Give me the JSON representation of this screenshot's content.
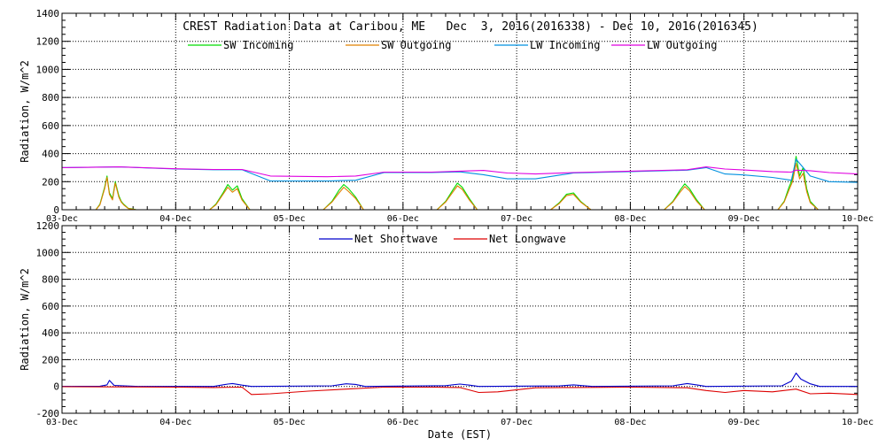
{
  "chart_data": [
    {
      "type": "line",
      "title": "CREST Radiation Data at Caribou, ME   Dec  3, 2016(2016338) - Dec 10, 2016(2016345)",
      "ylabel": "Radiation, W/m^2",
      "xlabel": "",
      "ylim": [
        0,
        1400
      ],
      "yticks": [
        0,
        200,
        400,
        600,
        800,
        1000,
        1200,
        1400
      ],
      "xticks": [
        "03-Dec",
        "04-Dec",
        "05-Dec",
        "06-Dec",
        "07-Dec",
        "08-Dec",
        "09-Dec",
        "10-Dec"
      ],
      "xlim": [
        "2016-12-03",
        "2016-12-10"
      ],
      "grid": true,
      "legend": "top",
      "series": [
        {
          "name": "SW Incoming",
          "color": "#00dd00",
          "x": [
            "12/3 07:10",
            "12/3 08:00",
            "12/3 09:00",
            "12/3 09:30",
            "12/3 10:00",
            "12/3 10:40",
            "12/3 11:15",
            "12/3 12:00",
            "12/3 12:30",
            "12/3 13:00",
            "12/3 14:00",
            "12/3 15:00",
            "12/3 15:40",
            "12/4 07:10",
            "12/4 08:30",
            "12/4 10:00",
            "12/4 11:00",
            "12/4 12:00",
            "12/4 13:00",
            "12/4 14:00",
            "12/4 15:40",
            "12/5 07:10",
            "12/5 09:00",
            "12/5 10:30",
            "12/5 11:30",
            "12/5 12:30",
            "12/5 14:00",
            "12/5 15:40",
            "12/6 07:10",
            "12/6 09:00",
            "12/6 10:30",
            "12/6 11:30",
            "12/6 12:30",
            "12/6 14:00",
            "12/6 15:40",
            "12/7 07:10",
            "12/7 09:00",
            "12/7 10:30",
            "12/7 12:00",
            "12/7 13:30",
            "12/7 15:40",
            "12/8 07:10",
            "12/8 09:00",
            "12/8 10:30",
            "12/8 11:30",
            "12/8 12:30",
            "12/8 14:00",
            "12/8 15:40",
            "12/9 07:10",
            "12/9 08:30",
            "12/9 09:30",
            "12/9 10:15",
            "12/9 11:00",
            "12/9 11:45",
            "12/9 12:30",
            "12/9 13:15",
            "12/9 14:00",
            "12/9 15:40"
          ],
          "values": [
            0,
            40,
            160,
            240,
            120,
            80,
            200,
            100,
            60,
            40,
            10,
            5,
            0,
            0,
            40,
            120,
            180,
            140,
            170,
            80,
            0,
            0,
            60,
            140,
            180,
            150,
            90,
            0,
            0,
            60,
            140,
            190,
            160,
            80,
            0,
            0,
            50,
            110,
            120,
            60,
            0,
            0,
            60,
            140,
            185,
            150,
            70,
            0,
            0,
            60,
            160,
            220,
            380,
            240,
            300,
            150,
            60,
            0
          ]
        },
        {
          "name": "SW Outgoing",
          "color": "#e08000",
          "x": [
            "12/3 07:10",
            "12/3 08:00",
            "12/3 09:00",
            "12/3 09:30",
            "12/3 10:00",
            "12/3 10:40",
            "12/3 11:15",
            "12/3 12:00",
            "12/3 12:30",
            "12/3 13:00",
            "12/3 14:00",
            "12/3 15:00",
            "12/3 15:40",
            "12/4 07:10",
            "12/4 08:30",
            "12/4 10:00",
            "12/4 11:00",
            "12/4 12:00",
            "12/4 13:00",
            "12/4 14:00",
            "12/4 15:40",
            "12/5 07:10",
            "12/5 09:00",
            "12/5 10:30",
            "12/5 11:30",
            "12/5 12:30",
            "12/5 14:00",
            "12/5 15:40",
            "12/6 07:10",
            "12/6 09:00",
            "12/6 10:30",
            "12/6 11:30",
            "12/6 12:30",
            "12/6 14:00",
            "12/6 15:40",
            "12/7 07:10",
            "12/7 09:00",
            "12/7 10:30",
            "12/7 12:00",
            "12/7 13:30",
            "12/7 15:40",
            "12/8 07:10",
            "12/8 09:00",
            "12/8 10:30",
            "12/8 11:30",
            "12/8 12:30",
            "12/8 14:00",
            "12/8 15:40",
            "12/9 07:10",
            "12/9 08:30",
            "12/9 09:30",
            "12/9 10:15",
            "12/9 11:00",
            "12/9 11:45",
            "12/9 12:30",
            "12/9 13:15",
            "12/9 14:00",
            "12/9 15:40"
          ],
          "values": [
            0,
            35,
            150,
            230,
            110,
            70,
            190,
            90,
            55,
            35,
            8,
            4,
            0,
            0,
            35,
            110,
            160,
            125,
            150,
            70,
            0,
            0,
            55,
            120,
            160,
            130,
            80,
            0,
            0,
            55,
            125,
            170,
            145,
            70,
            0,
            0,
            45,
            100,
            110,
            55,
            0,
            0,
            55,
            125,
            165,
            135,
            60,
            0,
            0,
            55,
            140,
            200,
            330,
            220,
            260,
            130,
            50,
            0
          ]
        },
        {
          "name": "LW Incoming",
          "color": "#0090e0",
          "x": [
            "12/3 00:00",
            "12/3 12:00",
            "12/4 00:00",
            "12/4 08:00",
            "12/4 14:00",
            "12/4 20:00",
            "12/5 08:00",
            "12/5 14:00",
            "12/5 20:00",
            "12/6 06:00",
            "12/6 12:00",
            "12/6 17:00",
            "12/6 22:00",
            "12/7 04:00",
            "12/7 12:00",
            "12/8 00:00",
            "12/8 12:00",
            "12/8 16:00",
            "12/8 20:00",
            "12/9 00:00",
            "12/9 06:00",
            "12/9 10:00",
            "12/9 11:00",
            "12/9 14:00",
            "12/9 18:00",
            "12/10 00:00"
          ],
          "values": [
            300,
            305,
            290,
            285,
            285,
            205,
            205,
            210,
            265,
            265,
            270,
            250,
            220,
            220,
            262,
            272,
            282,
            300,
            255,
            248,
            230,
            210,
            360,
            240,
            200,
            195
          ]
        },
        {
          "name": "LW Outgoing",
          "color": "#e000e0",
          "x": [
            "12/3 00:00",
            "12/3 12:00",
            "12/4 00:00",
            "12/4 08:00",
            "12/4 14:00",
            "12/4 20:00",
            "12/5 08:00",
            "12/5 14:00",
            "12/5 20:00",
            "12/6 06:00",
            "12/6 12:00",
            "12/6 17:00",
            "12/6 22:00",
            "12/7 04:00",
            "12/7 12:00",
            "12/8 00:00",
            "12/8 12:00",
            "12/8 16:00",
            "12/8 20:00",
            "12/9 00:00",
            "12/9 06:00",
            "12/9 10:00",
            "12/9 11:00",
            "12/9 14:00",
            "12/9 18:00",
            "12/10 00:00"
          ],
          "values": [
            300,
            305,
            292,
            287,
            287,
            240,
            235,
            240,
            268,
            268,
            275,
            280,
            262,
            255,
            265,
            275,
            285,
            305,
            290,
            283,
            272,
            268,
            282,
            278,
            265,
            255
          ]
        }
      ]
    },
    {
      "type": "line",
      "title": "",
      "ylabel": "Radiation, W/m^2",
      "xlabel": "Date (EST)",
      "ylim": [
        -200,
        1200
      ],
      "yticks": [
        -200,
        0,
        200,
        400,
        600,
        800,
        1000,
        1200
      ],
      "xticks": [
        "03-Dec",
        "04-Dec",
        "05-Dec",
        "06-Dec",
        "07-Dec",
        "08-Dec",
        "09-Dec",
        "10-Dec"
      ],
      "xlim": [
        "2016-12-03",
        "2016-12-10"
      ],
      "grid": true,
      "legend": "top",
      "series": [
        {
          "name": "Net Shortwave",
          "color": "#0000cc",
          "x": [
            "12/3 00:00",
            "12/3 08:00",
            "12/3 09:30",
            "12/3 10:00",
            "12/3 11:00",
            "12/3 16:00",
            "12/4 08:00",
            "12/4 11:00",
            "12/4 12:00",
            "12/4 14:00",
            "12/4 16:00",
            "12/5 09:00",
            "12/5 12:00",
            "12/5 14:00",
            "12/5 16:00",
            "12/6 09:00",
            "12/6 12:00",
            "12/6 14:00",
            "12/6 16:00",
            "12/7 09:00",
            "12/7 12:00",
            "12/7 16:00",
            "12/8 09:00",
            "12/8 12:00",
            "12/8 14:00",
            "12/8 16:00",
            "12/9 08:00",
            "12/9 10:00",
            "12/9 11:00",
            "12/9 12:00",
            "12/9 14:00",
            "12/9 16:00",
            "12/10 00:00"
          ],
          "values": [
            0,
            2,
            12,
            45,
            8,
            0,
            0,
            18,
            22,
            10,
            0,
            5,
            20,
            15,
            0,
            6,
            18,
            10,
            0,
            4,
            12,
            0,
            5,
            22,
            12,
            0,
            5,
            40,
            100,
            55,
            20,
            0,
            0
          ]
        },
        {
          "name": "Net Longwave",
          "color": "#dd0000",
          "x": [
            "12/3 00:00",
            "12/3 12:00",
            "12/4 00:00",
            "12/4 08:00",
            "12/4 14:00",
            "12/4 16:00",
            "12/4 20:00",
            "12/5 04:00",
            "12/5 12:00",
            "12/5 20:00",
            "12/6 06:00",
            "12/6 12:00",
            "12/6 16:00",
            "12/6 20:00",
            "12/7 04:00",
            "12/7 12:00",
            "12/8 00:00",
            "12/8 12:00",
            "12/8 16:00",
            "12/8 20:00",
            "12/9 00:00",
            "12/9 06:00",
            "12/9 11:00",
            "12/9 14:00",
            "12/9 18:00",
            "12/10 00:00"
          ],
          "values": [
            -2,
            -3,
            -5,
            -8,
            -5,
            -60,
            -55,
            -35,
            -20,
            -5,
            -5,
            -8,
            -45,
            -40,
            -10,
            -8,
            -5,
            -10,
            -30,
            -45,
            -30,
            -40,
            -20,
            -55,
            -50,
            -60
          ]
        }
      ]
    }
  ]
}
